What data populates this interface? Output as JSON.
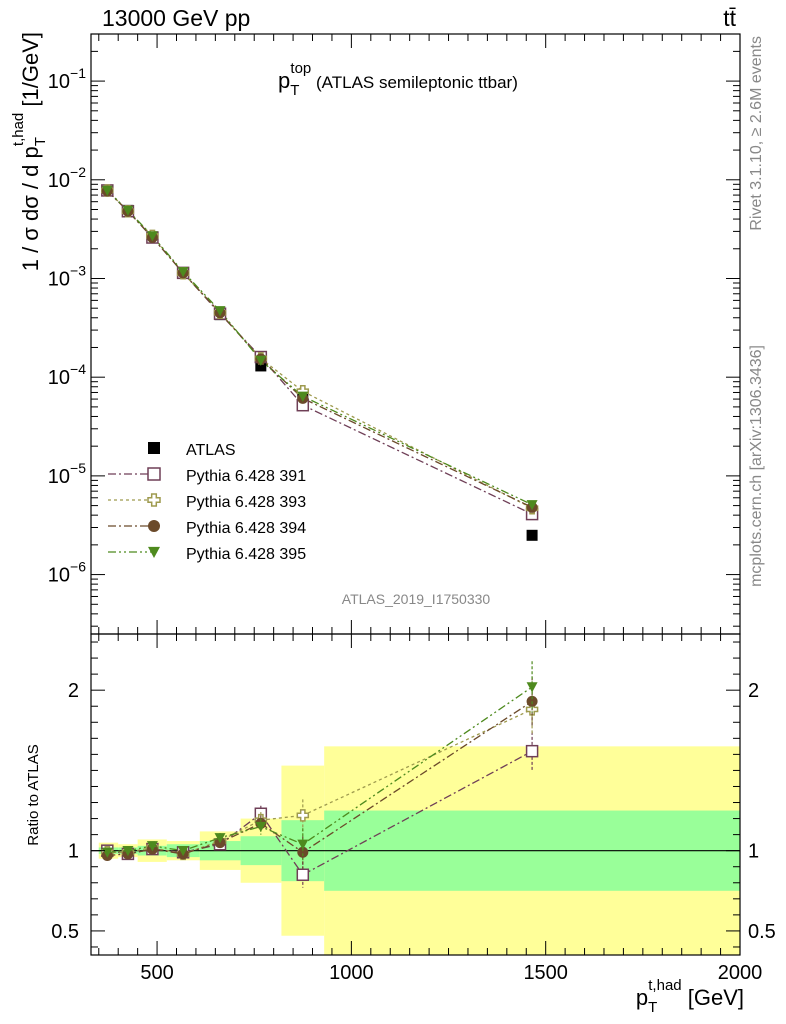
{
  "header": {
    "left": "13000 GeV pp",
    "right": "tt̄"
  },
  "side_labels": {
    "rivet": "Rivet 3.1.10, ≥ 2.6M events",
    "mcplots": "mcplots.cern.ch [arXiv:1306.3436]"
  },
  "chart_data": [
    {
      "type": "scatter",
      "title": "p_T^top (ATLAS semileptonic ttbar)",
      "title_parts": {
        "main": "p",
        "sub": "T",
        "sup": "top",
        "rest": " (ATLAS semileptonic ttbar)"
      },
      "ylabel": "1 / σ dσ / d p_T^t,had [1/GeV]",
      "ylabel_parts": {
        "pre": "1 / σ dσ / d p",
        "sub": "T",
        "sup": "t,had",
        "post": " [1/GeV]"
      },
      "yscale": "log",
      "ylim": [
        2.5e-07,
        0.3
      ],
      "xlim": [
        330,
        2000
      ],
      "y_ticks": [
        {
          "value": 1e-06,
          "base": "10",
          "exp": "−6"
        },
        {
          "value": 1e-05,
          "base": "10",
          "exp": "−5"
        },
        {
          "value": 0.0001,
          "base": "10",
          "exp": "−4"
        },
        {
          "value": 0.001,
          "base": "10",
          "exp": "−3"
        },
        {
          "value": 0.01,
          "base": "10",
          "exp": "−2"
        },
        {
          "value": 0.1,
          "base": "10",
          "exp": "−1"
        }
      ],
      "watermark": "ATLAS_2019_I1750330",
      "legend_position": "bottom-left",
      "x": [
        372,
        425,
        488,
        567,
        662,
        767,
        875,
        1465
      ],
      "series": [
        {
          "name": "ATLAS",
          "color": "#000000",
          "marker": "filled-square",
          "values": [
            0.0078,
            0.0049,
            0.0026,
            0.00115,
            0.00043,
            0.00013,
            6.2e-05,
            2.5e-06
          ]
        },
        {
          "name": "Pythia 6.428 391",
          "color": "#6f3f57",
          "marker": "open-square",
          "dash": "8,3,2,3",
          "values": [
            0.0078,
            0.0048,
            0.0026,
            0.00114,
            0.00044,
            0.00016,
            5.2e-05,
            4.1e-06
          ]
        },
        {
          "name": "Pythia 6.428 393",
          "color": "#9e9a4e",
          "marker": "open-cross",
          "dash": "3,3",
          "values": [
            0.0078,
            0.0048,
            0.0027,
            0.00113,
            0.00045,
            0.000155,
            7.2e-05,
            4.7e-06
          ]
        },
        {
          "name": "Pythia 6.428 394",
          "color": "#6b4a2a",
          "marker": "filled-circle",
          "dash": "8,3,2,3",
          "values": [
            0.0077,
            0.0048,
            0.0026,
            0.00114,
            0.00045,
            0.000153,
            6.1e-05,
            4.8e-06
          ]
        },
        {
          "name": "Pythia 6.428 395",
          "color": "#4e8a1e",
          "marker": "filled-triangle",
          "dash": "8,3,2,3,2,3",
          "values": [
            0.0078,
            0.0049,
            0.0027,
            0.00117,
            0.00047,
            0.000148,
            6.4e-05,
            5.1e-06
          ]
        }
      ]
    },
    {
      "type": "scatter",
      "ylabel": "Ratio to ATLAS",
      "xlabel": "p_T^t,had [GeV]",
      "xlabel_parts": {
        "pre": "p",
        "sub": "T",
        "sup": "t,had",
        "post": " [GeV]"
      },
      "ylim": [
        0.35,
        2.35
      ],
      "xlim": [
        330,
        2000
      ],
      "y_ticks": [
        {
          "value": 0.5,
          "label": "0.5"
        },
        {
          "value": 1,
          "label": "1"
        },
        {
          "value": 2,
          "label": "2"
        }
      ],
      "x_ticks": [
        {
          "value": 500,
          "label": "500"
        },
        {
          "value": 1000,
          "label": "1000"
        },
        {
          "value": 1500,
          "label": "1500"
        },
        {
          "value": 2000,
          "label": "2000"
        }
      ],
      "x": [
        372,
        425,
        488,
        567,
        662,
        767,
        875,
        1465
      ],
      "bins": [
        [
          350,
          400
        ],
        [
          400,
          450
        ],
        [
          450,
          525
        ],
        [
          525,
          610
        ],
        [
          610,
          715
        ],
        [
          715,
          820
        ],
        [
          820,
          930
        ],
        [
          930,
          2000
        ]
      ],
      "bands": {
        "total_color": "#ffff99",
        "stat_color": "#99ff99",
        "total": [
          [
            0.95,
            1.05
          ],
          [
            0.96,
            1.04
          ],
          [
            0.93,
            1.07
          ],
          [
            0.94,
            1.06
          ],
          [
            0.88,
            1.12
          ],
          [
            0.8,
            1.2
          ],
          [
            0.47,
            1.53
          ],
          [
            0.35,
            1.65
          ]
        ],
        "stat": [
          [
            0.98,
            1.02
          ],
          [
            0.98,
            1.02
          ],
          [
            0.97,
            1.03
          ],
          [
            0.96,
            1.04
          ],
          [
            0.94,
            1.06
          ],
          [
            0.91,
            1.09
          ],
          [
            0.81,
            1.19
          ],
          [
            0.75,
            1.25
          ]
        ]
      },
      "series": [
        {
          "name": "Pythia 6.428 391",
          "values": [
            1.0,
            0.98,
            1.01,
            0.99,
            1.04,
            1.23,
            0.85,
            1.62
          ],
          "errors": [
            0.015,
            0.015,
            0.015,
            0.02,
            0.03,
            0.05,
            0.08,
            0.12
          ]
        },
        {
          "name": "Pythia 6.428 393",
          "values": [
            0.99,
            0.99,
            1.02,
            0.98,
            1.06,
            1.19,
            1.22,
            1.88
          ],
          "errors": [
            0.015,
            0.015,
            0.015,
            0.02,
            0.03,
            0.05,
            0.1,
            0.15
          ]
        },
        {
          "name": "Pythia 6.428 394",
          "values": [
            0.97,
            0.98,
            1.01,
            0.98,
            1.05,
            1.17,
            0.99,
            1.93
          ],
          "errors": [
            0.015,
            0.015,
            0.015,
            0.02,
            0.03,
            0.05,
            0.1,
            0.15
          ]
        },
        {
          "name": "Pythia 6.428 395",
          "values": [
            0.99,
            1.0,
            1.03,
            1.0,
            1.08,
            1.15,
            1.04,
            2.02
          ],
          "errors": [
            0.015,
            0.015,
            0.015,
            0.02,
            0.03,
            0.05,
            0.1,
            0.16
          ]
        }
      ]
    }
  ]
}
